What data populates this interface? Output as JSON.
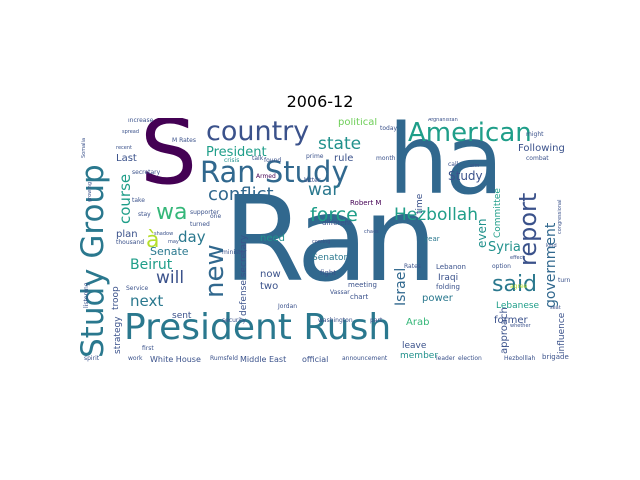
{
  "title": "2006-12",
  "palette": {
    "purple": "#440154",
    "indigo": "#3b528b",
    "blue": "#31688e",
    "teal": "#2a788e",
    "cyan": "#21918c",
    "sea": "#1f9e89",
    "green": "#35b779",
    "lime": "#6ece58",
    "yellow": "#b5de2b",
    "bright": "#fde725"
  },
  "words": {
    "ran": "Ran",
    "ha": "ha",
    "s": "S",
    "president_rush": "President Rush",
    "study_group": "Study Group",
    "ran_study": "Ran Study",
    "country": "country",
    "american": "American",
    "new": "new",
    "report": "report",
    "wa": "wa",
    "conflict": "conflict",
    "force": "force",
    "hezbollah": "Hezbollah",
    "said": "said",
    "state": "state",
    "war": "war",
    "president": "President",
    "course": "course",
    "a_grave": "à",
    "will": "will",
    "day": "day",
    "beirut": "Beirut",
    "next": "next",
    "government": "government",
    "israel": "Israel",
    "even": "even",
    "syria": "Syria",
    "study": "Study",
    "senate": "Senate",
    "plan": "plan",
    "last": "Last",
    "political": "political",
    "following": "Following",
    "rule": "rule",
    "need": "need",
    "two": "two",
    "now": "now",
    "power": "power",
    "arab": "Arab",
    "lebanese": "Lebanese",
    "former": "former",
    "approach": "approach",
    "influence": "influence",
    "committee": "Committee",
    "time": "time",
    "iraqi": "Iraqi",
    "leave": "leave",
    "member": "member",
    "defense_secretary": "defense secretary",
    "senator": "Senator",
    "troop": "troop",
    "strategy": "strategy",
    "sent": "sent",
    "white_house": "White House",
    "middle_east": "Middle East",
    "official": "official",
    "robert_m": "Robert M",
    "chart": "chart",
    "meeting": "meeting",
    "folding": "folding",
    "lebanon": "Lebanon",
    "year": "year",
    "different": "different",
    "fight": "fight",
    "vassar": "Vassar",
    "jordan": "Jordan",
    "washington": "washington",
    "part": "part",
    "announcement": "announcement",
    "leader": "leader",
    "election": "election",
    "hezbolllah": "Hezbolllah",
    "brigade": "brigade",
    "rumsfeld": "Rumsfeld",
    "work": "work",
    "first": "first",
    "spirit": "spirit",
    "increase": "increase",
    "today": "today",
    "call": "call",
    "combat": "combat",
    "m_rates": "M Rates",
    "crisis": "crisis",
    "talk": "talk",
    "found": "found",
    "secretary": "secretary",
    "armed": "Armed",
    "take": "take",
    "stay": "stay",
    "service": "Service",
    "minister": "minister",
    "supporter": "supporter",
    "turned": "turned",
    "bitter": "bitter",
    "month": "month",
    "afghanistan": "Afghanistan",
    "might": "might",
    "option": "option",
    "listening": "listening",
    "thousand": "thousand",
    "somalia": "Somalia",
    "prime": "prime",
    "security": "security",
    "rates": "Rates",
    "whether": "whether",
    "turn": "turn",
    "one": "one",
    "chaos": "chaos",
    "coming": "coming",
    "agree": "agree",
    "kind": "kind",
    "recent": "recent",
    "spread": "spread",
    "shadow": "shadow",
    "congressional": "congressional",
    "effect": "effect",
    "may": "may",
    "aim": "aim",
    "seat": "seat",
    "growing": "growing"
  }
}
